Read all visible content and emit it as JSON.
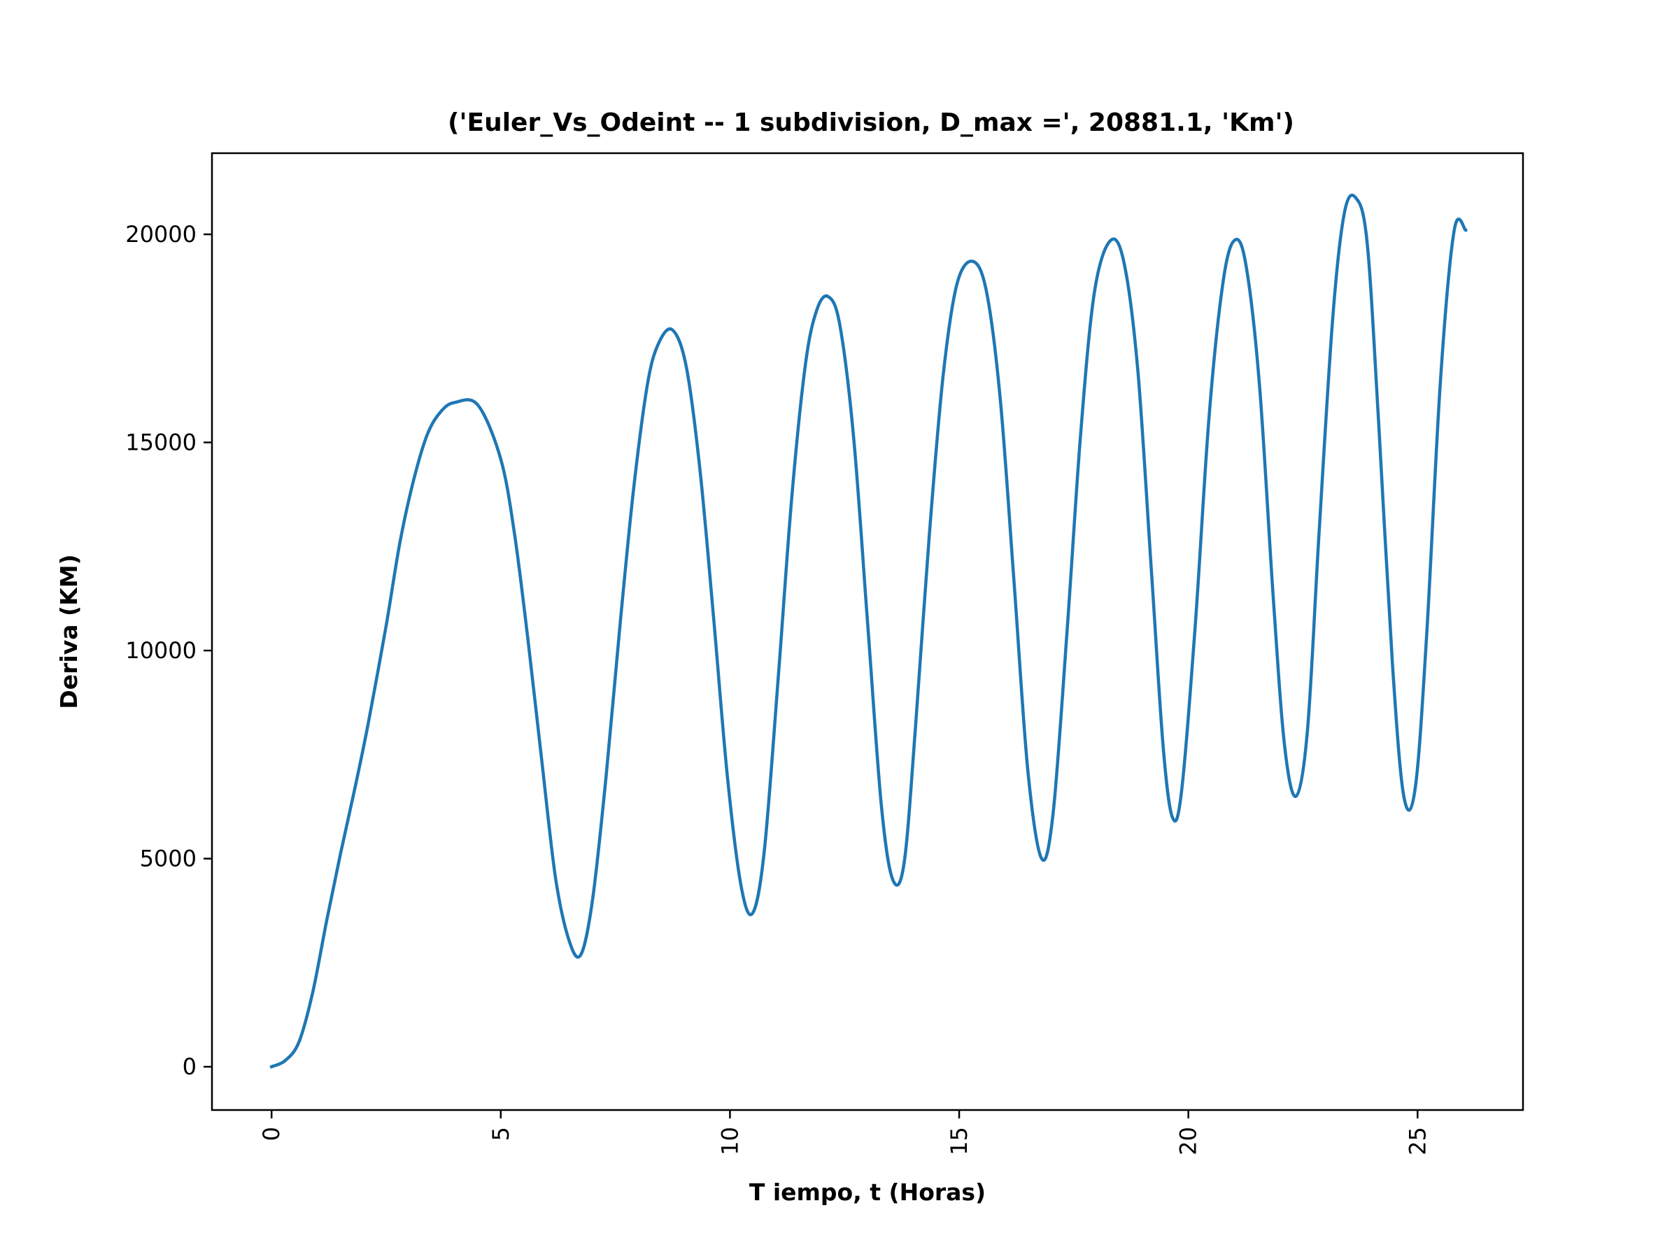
{
  "chart_data": {
    "type": "line",
    "title": "('Euler_Vs_Odeint -- 1 subdivision, D_max =', 20881.1, 'Km')",
    "xlabel": "T iempo, t (Horas)",
    "ylabel": "Deriva (KM)",
    "xlim": [
      -1.3,
      27.3
    ],
    "ylim": [
      -1040,
      21950
    ],
    "xticks": [
      0,
      5,
      10,
      15,
      20,
      25
    ],
    "xtick_labels": [
      "0",
      "5",
      "10",
      "15",
      "20",
      "25"
    ],
    "yticks": [
      0,
      5000,
      10000,
      15000,
      20000
    ],
    "ytick_labels": [
      "0",
      "5000",
      "10000",
      "15000",
      "20000"
    ],
    "grid": false,
    "line_color": "#1f77b4",
    "series": [
      {
        "x": [
          0,
          0.3,
          0.6,
          0.9,
          1.2,
          1.5,
          1.8,
          2.1,
          2.5,
          2.8,
          3.1,
          3.4,
          3.7,
          4.0,
          4.5,
          5.0,
          5.3,
          5.6,
          5.9,
          6.2,
          6.5,
          6.75,
          7.0,
          7.3,
          7.6,
          7.9,
          8.2,
          8.45,
          8.75,
          9.05,
          9.35,
          9.65,
          9.95,
          10.25,
          10.5,
          10.75,
          11.05,
          11.35,
          11.65,
          11.9,
          12.15,
          12.4,
          12.7,
          13.0,
          13.3,
          13.55,
          13.8,
          14.05,
          14.35,
          14.65,
          14.95,
          15.3,
          15.6,
          15.9,
          16.2,
          16.5,
          16.8,
          17.05,
          17.35,
          17.65,
          17.95,
          18.3,
          18.6,
          18.9,
          19.2,
          19.45,
          19.65,
          19.85,
          20.15,
          20.45,
          20.75,
          21.0,
          21.25,
          21.55,
          21.85,
          22.1,
          22.35,
          22.6,
          22.85,
          23.15,
          23.4,
          23.65,
          23.9,
          24.15,
          24.45,
          24.7,
          24.95,
          25.2,
          25.5,
          25.8,
          26.05
        ],
        "y": [
          0,
          150,
          600,
          1800,
          3500,
          5100,
          6600,
          8200,
          10600,
          12600,
          14100,
          15200,
          15750,
          15960,
          15900,
          14600,
          12800,
          10200,
          7300,
          4500,
          3000,
          2700,
          4000,
          7000,
          10600,
          13900,
          16400,
          17400,
          17700,
          16800,
          14300,
          10700,
          6900,
          4300,
          3700,
          5200,
          9300,
          13700,
          16900,
          18200,
          18500,
          17800,
          15100,
          10700,
          6300,
          4500,
          4900,
          8200,
          12800,
          16600,
          18800,
          19350,
          18600,
          16000,
          11600,
          7100,
          5000,
          6100,
          10400,
          15200,
          18600,
          19850,
          19300,
          16700,
          11800,
          7700,
          6000,
          6600,
          10600,
          15600,
          18800,
          19850,
          19300,
          16400,
          11300,
          7700,
          6500,
          8100,
          12800,
          18000,
          20500,
          20881,
          19800,
          15500,
          9700,
          6500,
          6700,
          10400,
          16500,
          20100,
          20100
        ]
      }
    ]
  }
}
